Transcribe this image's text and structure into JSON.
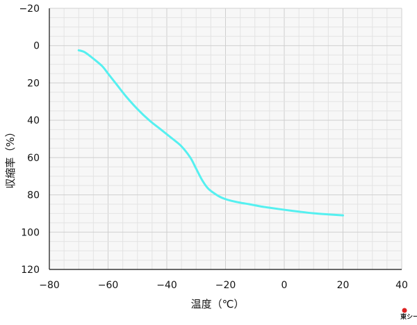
{
  "chart_data": {
    "type": "line",
    "title": "",
    "xlabel": "温度（℃）",
    "ylabel": "収縮率（%）",
    "xlim": [
      -80,
      40
    ],
    "ylim": [
      -20,
      120
    ],
    "y_inverted": true,
    "x_ticks": [
      -80,
      -60,
      -40,
      -20,
      0,
      20,
      40
    ],
    "y_ticks": [
      -20,
      0,
      20,
      40,
      60,
      80,
      100,
      120
    ],
    "x_tick_labels": [
      "−80",
      "−60",
      "−40",
      "−20",
      "0",
      "20",
      "40"
    ],
    "y_tick_labels": [
      "−20",
      "0",
      "20",
      "40",
      "60",
      "80",
      "100",
      "120"
    ],
    "grid": true,
    "legend": "none",
    "series": [
      {
        "color": "#55f0f0",
        "x": [
          -70,
          -68,
          -65,
          -62,
          -60,
          -57,
          -54,
          -50,
          -46,
          -42,
          -38,
          -35,
          -32,
          -30,
          -28,
          -26,
          -24,
          -22,
          -20,
          -18,
          -15,
          -12,
          -10,
          -8,
          -5,
          0,
          5,
          10,
          15,
          20
        ],
        "y": [
          2.5,
          3.5,
          7,
          11,
          15,
          21,
          27,
          34,
          40,
          45,
          50,
          54,
          60,
          66,
          72,
          76.5,
          79,
          81,
          82.3,
          83.2,
          84.2,
          85,
          85.6,
          86.2,
          86.9,
          88,
          89,
          89.9,
          90.5,
          91
        ]
      }
    ]
  },
  "logo": {
    "text": "東シール",
    "color": "#dd2222"
  }
}
